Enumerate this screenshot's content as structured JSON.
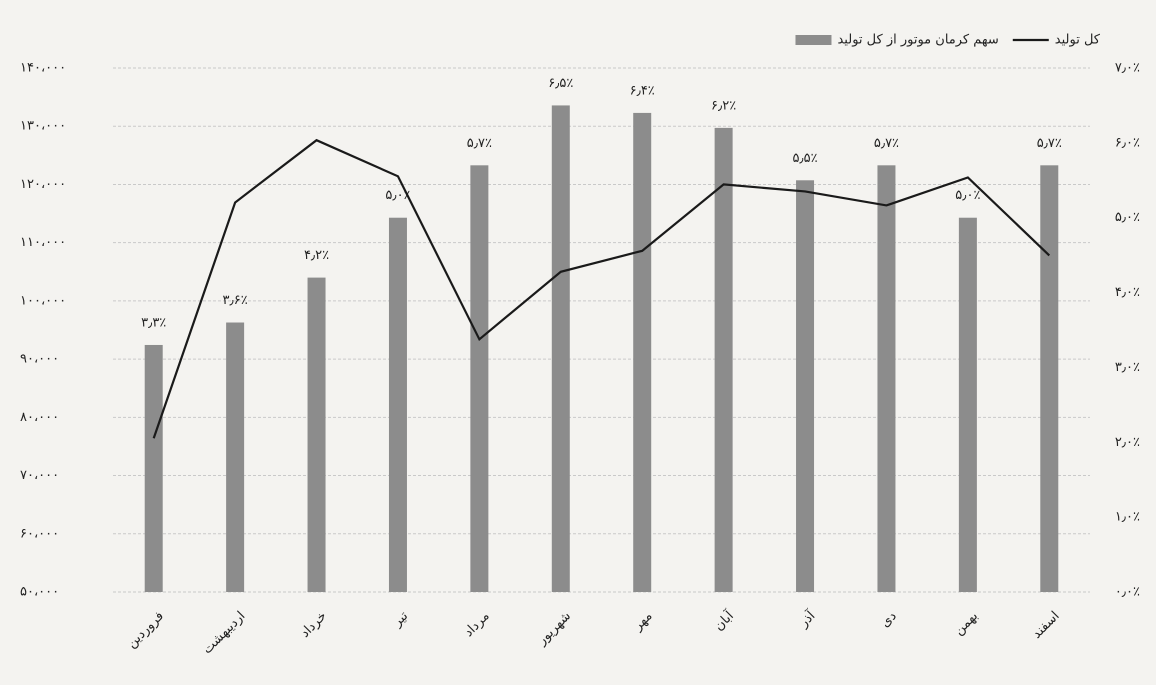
{
  "chart_data": {
    "type": "bar",
    "categories": [
      "فروردین",
      "اردیبهشت",
      "خرداد",
      "تیر",
      "مرداد",
      "شهریور",
      "مهر",
      "آبان",
      "آذر",
      "دی",
      "بهمن",
      "اسفند"
    ],
    "series": [
      {
        "name": "سهم کرمان موتور از کل تولید",
        "type": "bar",
        "axis": "y2",
        "color": "#8c8c8c",
        "values": [
          3.3,
          3.6,
          4.2,
          5.0,
          5.7,
          6.5,
          6.4,
          6.2,
          5.5,
          5.7,
          5.0,
          5.7
        ],
        "value_labels": [
          "۳٫۳٪",
          "۳٫۶٪",
          "۴٫۲٪",
          "۵٫۰٪",
          "۵٫۷٪",
          "۶٫۵٪",
          "۶٫۴٪",
          "۶٫۲٪",
          "۵٫۵٪",
          "۵٫۷٪",
          "۵٫۰٪",
          "۵٫۷٪"
        ]
      },
      {
        "name": "کل تولید",
        "type": "line",
        "axis": "y",
        "color": "#1a1a1a",
        "values": [
          76400,
          116900,
          127600,
          121400,
          93400,
          105000,
          108600,
          120000,
          118800,
          116400,
          121200,
          107800
        ]
      }
    ],
    "ylim": [
      50000,
      140000
    ],
    "yticks": [
      {
        "value": 50000,
        "label": "۵۰،۰۰۰"
      },
      {
        "value": 60000,
        "label": "۶۰،۰۰۰"
      },
      {
        "value": 70000,
        "label": "۷۰،۰۰۰"
      },
      {
        "value": 80000,
        "label": "۸۰،۰۰۰"
      },
      {
        "value": 90000,
        "label": "۹۰،۰۰۰"
      },
      {
        "value": 100000,
        "label": "۱۰۰،۰۰۰"
      },
      {
        "value": 110000,
        "label": "۱۱۰،۰۰۰"
      },
      {
        "value": 120000,
        "label": "۱۲۰،۰۰۰"
      },
      {
        "value": 130000,
        "label": "۱۳۰،۰۰۰"
      },
      {
        "value": 140000,
        "label": "۱۴۰،۰۰۰"
      }
    ],
    "y2lim": [
      0,
      7
    ],
    "y2ticks": [
      {
        "value": 0,
        "label": "۰٫۰٪"
      },
      {
        "value": 1,
        "label": "۱٫۰٪"
      },
      {
        "value": 2,
        "label": "۲٫۰٪"
      },
      {
        "value": 3,
        "label": "۳٫۰٪"
      },
      {
        "value": 4,
        "label": "۴٫۰٪"
      },
      {
        "value": 5,
        "label": "۵٫۰٪"
      },
      {
        "value": 6,
        "label": "۶٫۰٪"
      },
      {
        "value": 7,
        "label": "۷٫۰٪"
      }
    ],
    "grid": true,
    "legend": "top-right"
  }
}
